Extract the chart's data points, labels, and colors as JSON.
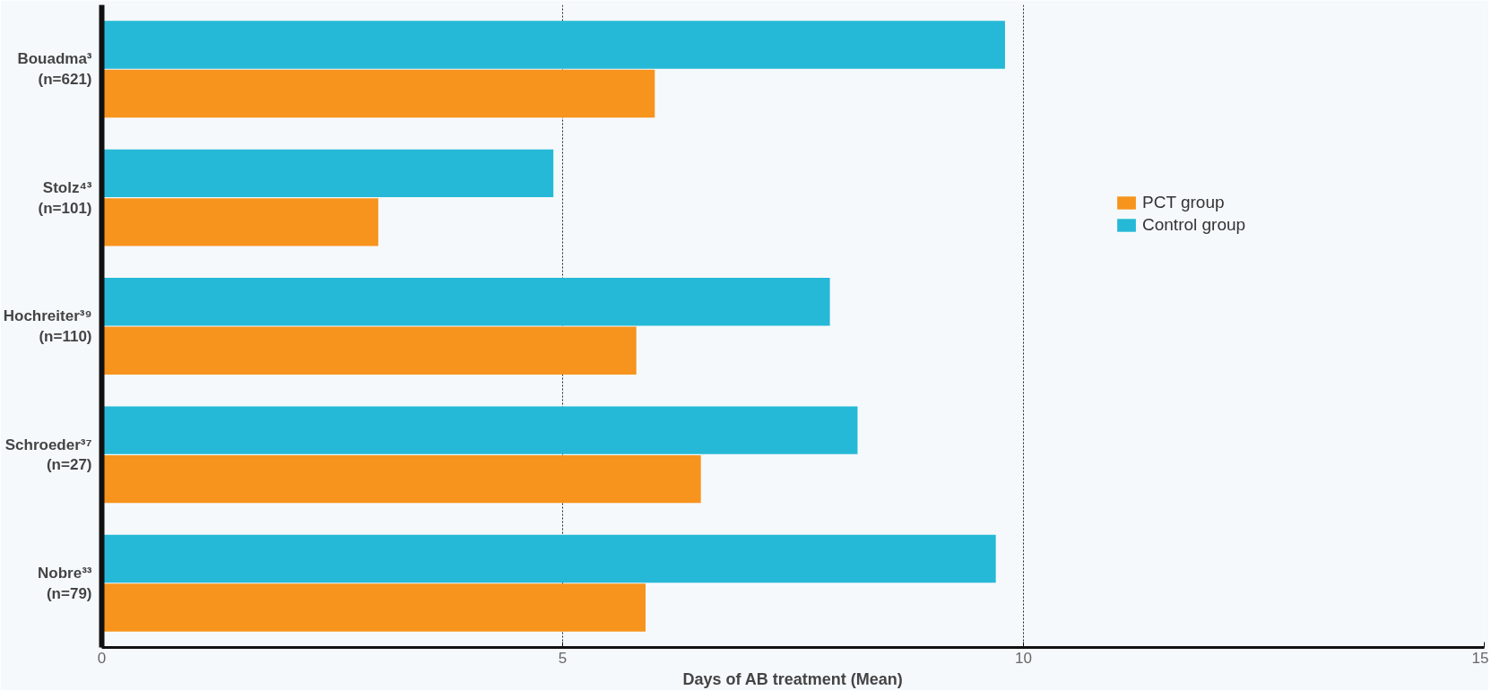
{
  "chart_data": {
    "type": "bar",
    "orientation": "horizontal",
    "xlabel": "Days of AB treatment (Mean)",
    "categories": [
      "Bouadma³\n(n=621)",
      "Stolz⁴³\n(n=101)",
      "Hochreiter³⁹\n(n=110)",
      "Schroeder³⁷\n(n=27)",
      "Nobre³³\n(n=79)"
    ],
    "series": [
      {
        "name": "PCT group",
        "color": "#f7941d",
        "values": [
          6.0,
          3.0,
          5.8,
          6.5,
          5.9
        ]
      },
      {
        "name": "Control group",
        "color": "#25b9d7",
        "values": [
          9.8,
          4.9,
          7.9,
          8.2,
          9.7
        ]
      }
    ],
    "xlim": [
      0,
      15
    ],
    "xticks": [
      0,
      5,
      10,
      15
    ],
    "grid": "x",
    "legend": "right"
  }
}
